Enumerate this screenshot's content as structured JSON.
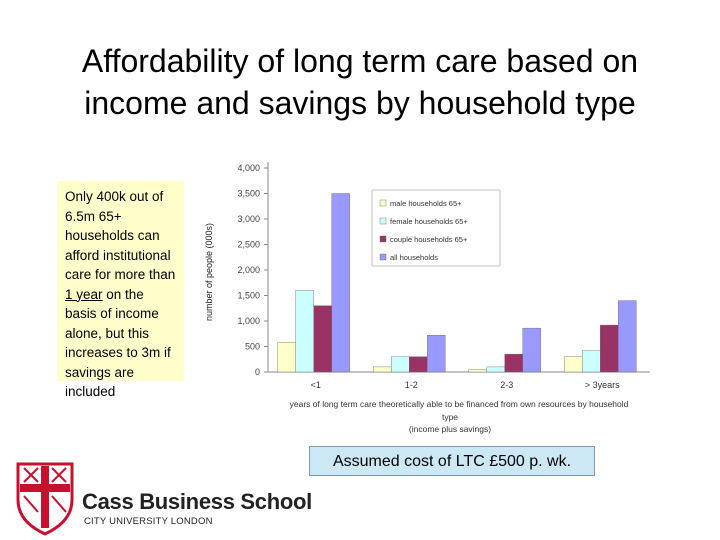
{
  "slide": {
    "title_line1": "Affordability of long term care based on",
    "title_line2": "income and savings by household type",
    "callout_pre": "Only 400k out of 6.5m 65+ households can afford institutional care for more than ",
    "callout_underline": "1 year",
    "callout_post": " on the basis of income alone, but this increases to 3m if savings are included",
    "note": "Assumed cost of LTC £500 p. wk.",
    "logo_name": "Cass Business School",
    "logo_sub": "CITY UNIVERSITY LONDON"
  },
  "chart_data": {
    "type": "bar",
    "categories": [
      "<1",
      "1-2",
      "2-3",
      "> 3years"
    ],
    "series": [
      {
        "name": "male households 65+",
        "color": "#ffffcc",
        "values": [
          580,
          100,
          50,
          300
        ]
      },
      {
        "name": "female households 65+",
        "color": "#ccffff",
        "values": [
          1600,
          300,
          100,
          420
        ]
      },
      {
        "name": "couple households 65+",
        "color": "#993366",
        "values": [
          1300,
          300,
          350,
          920
        ]
      },
      {
        "name": "all households",
        "color": "#9999ff",
        "values": [
          3500,
          720,
          860,
          1400
        ]
      }
    ],
    "ylabel": "number of people (000s)",
    "xlabel_line1": "years of long term care theoretically able to be financed from own resources by household",
    "xlabel_line2": "type",
    "xlabel_line3": "(income plus savings)",
    "yticks": [
      "0",
      "500",
      "1,000",
      "1,500",
      "2,000",
      "2,500",
      "3,000",
      "3,500",
      "4,000"
    ],
    "ylim": [
      0,
      4000
    ],
    "legend_position": "top-right"
  }
}
